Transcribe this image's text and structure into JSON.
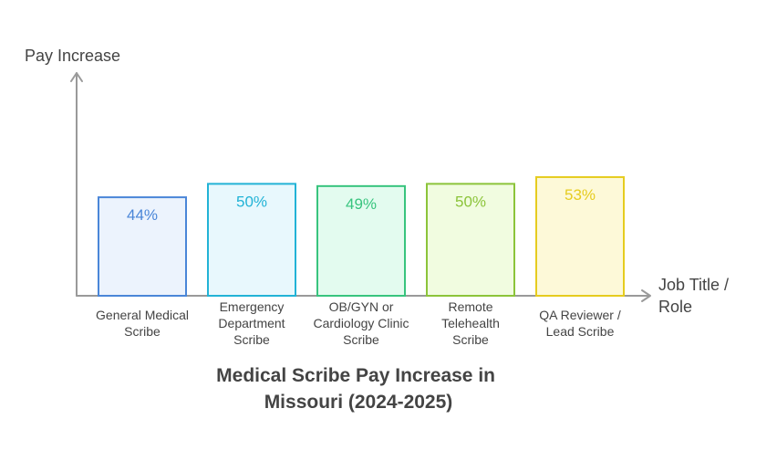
{
  "chart_data": {
    "type": "bar",
    "title_lines": [
      "Medical Scribe Pay Increase in",
      "Missouri (2024-2025)"
    ],
    "ylabel": "Pay Increase",
    "xlabel_lines": [
      "Job Title /",
      "Role"
    ],
    "ylim": [
      0,
      100
    ],
    "grid": false,
    "categories": [
      [
        "General Medical",
        "Scribe"
      ],
      [
        "Emergency",
        "Department",
        "Scribe"
      ],
      [
        "OB/GYN or",
        "Cardiology Clinic",
        "Scribe"
      ],
      [
        "Remote",
        "Telehealth",
        "Scribe"
      ],
      [
        "QA Reviewer /",
        "Lead Scribe"
      ]
    ],
    "values": [
      44,
      50,
      49,
      50,
      53
    ],
    "value_labels": [
      "44%",
      "50%",
      "49%",
      "50%",
      "53%"
    ],
    "colors": {
      "stroke": [
        "#4a86d8",
        "#22b3d6",
        "#38c47e",
        "#8cc43a",
        "#e6cc1f"
      ],
      "fill": [
        "#ecf3fd",
        "#e8f8fd",
        "#e3fbef",
        "#f1fce0",
        "#fdf9d8"
      ],
      "label": [
        "#4a86d8",
        "#22b3d6",
        "#38c47e",
        "#8cc43a",
        "#e6cc1f"
      ],
      "axis": "#9a9a9a"
    }
  }
}
